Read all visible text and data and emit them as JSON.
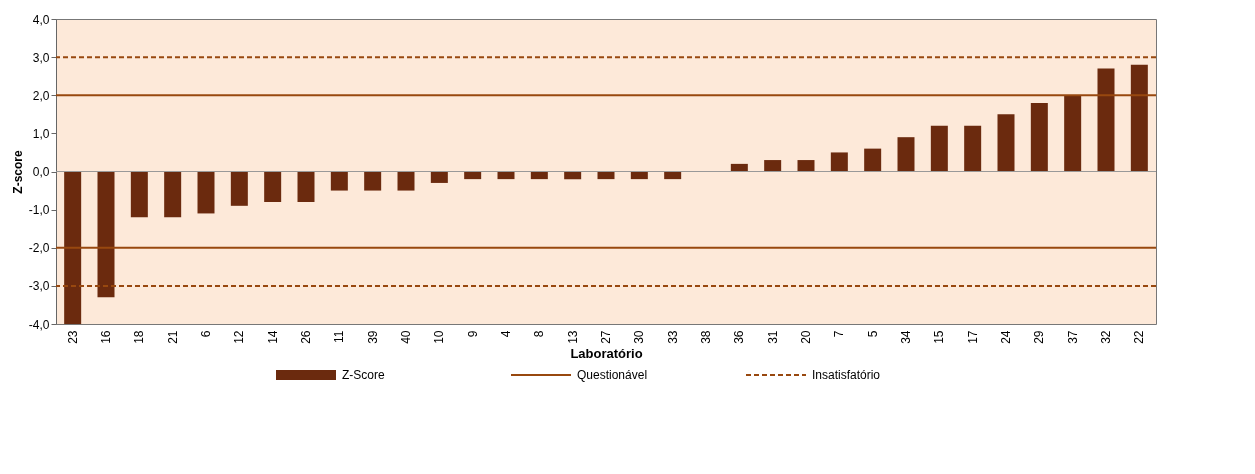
{
  "chart_data": {
    "type": "bar",
    "xlabel": "Laboratório",
    "ylabel": "Z-score",
    "categories": [
      "23",
      "16",
      "18",
      "21",
      "6",
      "12",
      "14",
      "26",
      "11",
      "39",
      "40",
      "10",
      "9",
      "4",
      "8",
      "13",
      "27",
      "30",
      "33",
      "38",
      "36",
      "31",
      "20",
      "7",
      "5",
      "34",
      "15",
      "17",
      "24",
      "29",
      "37",
      "32",
      "22"
    ],
    "series": [
      {
        "name": "Z-Score",
        "color": "#6b2a0e",
        "values": [
          -4.0,
          -3.3,
          -1.2,
          -1.2,
          -1.1,
          -0.9,
          -0.8,
          -0.8,
          -0.5,
          -0.5,
          -0.5,
          -0.3,
          -0.2,
          -0.2,
          -0.2,
          -0.2,
          -0.2,
          -0.2,
          -0.2,
          0.0,
          0.2,
          0.3,
          0.3,
          0.5,
          0.6,
          0.9,
          1.2,
          1.2,
          1.5,
          1.8,
          2.0,
          2.7,
          2.8
        ]
      }
    ],
    "ylim": [
      -4,
      4
    ],
    "yticks": [
      {
        "value": -4,
        "label": "-4,0"
      },
      {
        "value": -3,
        "label": "-3,0"
      },
      {
        "value": -2,
        "label": "-2,0"
      },
      {
        "value": -1,
        "label": "-1,0"
      },
      {
        "value": 0,
        "label": "0,0"
      },
      {
        "value": 1,
        "label": "1,0"
      },
      {
        "value": 2,
        "label": "2,0"
      },
      {
        "value": 3,
        "label": "3,0"
      },
      {
        "value": 4,
        "label": "4,0"
      }
    ],
    "ref_lines": [
      {
        "axis": "y",
        "value": 2,
        "label": "Questionável",
        "color": "#98480f",
        "line_style": "solid"
      },
      {
        "axis": "y",
        "value": -2,
        "color": "#98480f",
        "line_style": "solid"
      },
      {
        "axis": "y",
        "value": 3,
        "label": "Insatisfatório",
        "color": "#98480f",
        "line_style": "dashed"
      },
      {
        "axis": "y",
        "value": -3,
        "color": "#98480f",
        "line_style": "dashed"
      }
    ],
    "grid": false,
    "legend": "bottom"
  }
}
